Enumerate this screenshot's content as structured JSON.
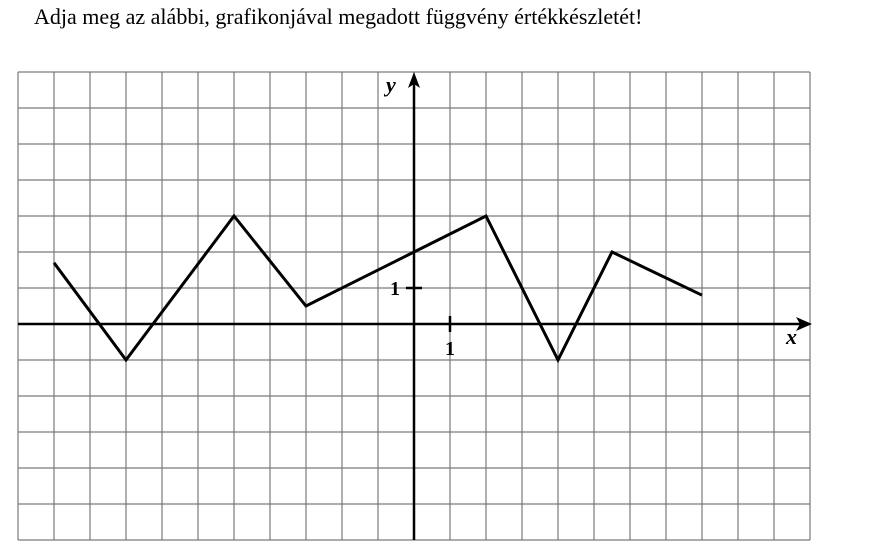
{
  "question": "Adja meg az alábbi, grafikonjával megadott függvény értékkészletét!",
  "chart_data": {
    "type": "line",
    "title": "",
    "xlabel": "x",
    "ylabel": "y",
    "xlim": [
      -11,
      11
    ],
    "ylim": [
      -6,
      7
    ],
    "grid": true,
    "x_tick_labels": [
      {
        "value": 1,
        "text": "1"
      }
    ],
    "y_tick_labels": [
      {
        "value": 1,
        "text": "1"
      }
    ],
    "series": [
      {
        "x": [
          -10,
          -8,
          -5,
          -3,
          0,
          2,
          4,
          5.5,
          8
        ],
        "y": [
          1.7,
          -1,
          3,
          0.5,
          2,
          3,
          -1,
          2,
          0.8
        ]
      }
    ],
    "colors": {
      "line": "#000000",
      "grid": "#7a7a7a",
      "axis": "#000000"
    }
  }
}
